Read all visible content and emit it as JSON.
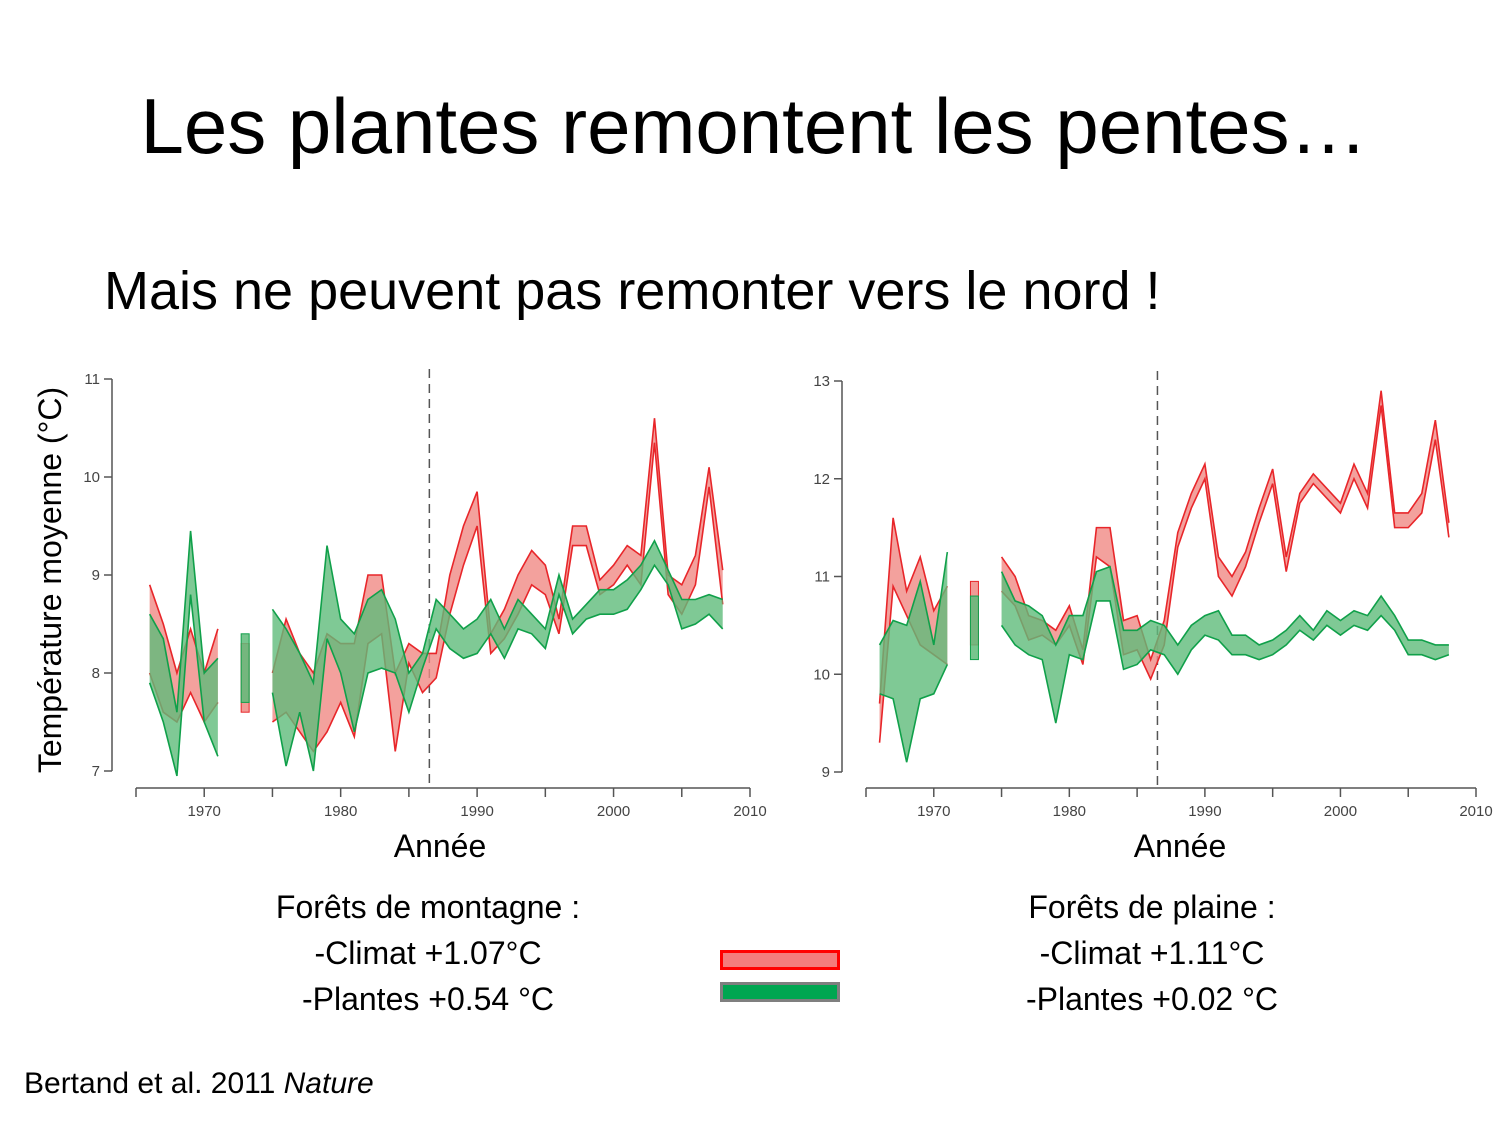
{
  "slide": {
    "title": "Les plantes remontent les pentes…",
    "subtitle": "Mais ne peuvent pas remonter vers le nord !",
    "citation_text": "Bertand et al. 2011 ",
    "citation_journal": "Nature"
  },
  "colors": {
    "climate_fill": "#f08a84",
    "climate_stroke": "#e8262a",
    "plants_fill": "#5fbb7a",
    "plants_stroke": "#10a04a",
    "legend_climate_fill": "#f47c7c",
    "legend_climate_border": "#ff0000",
    "legend_plants_fill": "#00a651",
    "legend_plants_border": "#7f7f7f"
  },
  "ylabel": "Température moyenne (°C)",
  "panels": [
    {
      "xlabel": "Année",
      "summary": [
        "Forêts de montagne :",
        "-Climat +1.07°C",
        "-Plantes +0.54 °C"
      ]
    },
    {
      "xlabel": "Année",
      "summary": [
        "Forêts de plaine :",
        "-Climat +1.11°C",
        "-Plantes +0.02 °C"
      ]
    }
  ],
  "chart_data": [
    {
      "type": "area",
      "xlabel": "Année",
      "ylabel": "Température moyenne (°C)",
      "xlim": [
        1965,
        2010
      ],
      "ylim": [
        7,
        11
      ],
      "xticks": [
        1970,
        1980,
        1990,
        2000,
        2010
      ],
      "yticks": [
        7,
        8,
        9,
        10,
        11
      ],
      "vline": 1986.5,
      "series": [
        {
          "role": "climate",
          "segments": [
            {
              "x": [
                1966,
                1967,
                1968,
                1969,
                1970,
                1971
              ],
              "lower": [
                8.0,
                7.6,
                7.5,
                7.8,
                7.5,
                7.7
              ],
              "upper": [
                8.9,
                8.5,
                8.0,
                8.45,
                8.0,
                8.45
              ]
            },
            {
              "x": [
                1973
              ],
              "lower": [
                7.6
              ],
              "upper": [
                8.3
              ]
            },
            {
              "x": [
                1975,
                1976,
                1977,
                1978,
                1979,
                1980,
                1981,
                1982,
                1983,
                1984,
                1985,
                1986,
                1987,
                1988,
                1989,
                1990,
                1991,
                1992,
                1993,
                1994,
                1995,
                1996,
                1997,
                1998,
                1999,
                2000,
                2001,
                2002,
                2003,
                2004,
                2005,
                2006,
                2007,
                2008
              ],
              "lower": [
                7.5,
                7.6,
                7.4,
                7.2,
                7.4,
                7.7,
                7.35,
                8.3,
                8.4,
                7.2,
                8.1,
                7.8,
                7.95,
                8.6,
                9.1,
                9.5,
                8.2,
                8.35,
                8.6,
                8.9,
                8.8,
                8.4,
                9.3,
                9.3,
                8.8,
                8.9,
                9.1,
                8.9,
                10.35,
                8.8,
                8.6,
                8.9,
                9.9,
                8.7
              ],
              "upper": [
                8.0,
                8.55,
                8.2,
                8.0,
                8.4,
                8.3,
                8.3,
                9.0,
                9.0,
                8.0,
                8.3,
                8.2,
                8.2,
                9.0,
                9.5,
                9.85,
                8.4,
                8.65,
                9.0,
                9.25,
                9.1,
                8.55,
                9.5,
                9.5,
                8.95,
                9.1,
                9.3,
                9.2,
                10.6,
                9.0,
                8.9,
                9.2,
                10.1,
                9.05
              ]
            }
          ]
        },
        {
          "role": "plants",
          "segments": [
            {
              "x": [
                1966,
                1967,
                1968,
                1969,
                1970,
                1971
              ],
              "lower": [
                7.9,
                7.5,
                6.95,
                8.8,
                7.5,
                7.15
              ],
              "upper": [
                8.6,
                8.35,
                7.6,
                9.45,
                8.0,
                8.15
              ]
            },
            {
              "x": [
                1973
              ],
              "lower": [
                7.7
              ],
              "upper": [
                8.4
              ]
            },
            {
              "x": [
                1975,
                1976,
                1977,
                1978,
                1979,
                1980,
                1981,
                1982,
                1983,
                1984,
                1985,
                1986,
                1987,
                1988,
                1989,
                1990,
                1991,
                1992,
                1993,
                1994,
                1995,
                1996,
                1997,
                1998,
                1999,
                2000,
                2001,
                2002,
                2003,
                2004,
                2005,
                2006,
                2007,
                2008
              ],
              "lower": [
                7.8,
                7.05,
                7.6,
                7.0,
                8.35,
                8.0,
                7.4,
                8.0,
                8.05,
                8.0,
                7.6,
                8.05,
                8.45,
                8.25,
                8.15,
                8.2,
                8.4,
                8.15,
                8.45,
                8.4,
                8.25,
                8.8,
                8.4,
                8.55,
                8.6,
                8.6,
                8.65,
                8.85,
                9.1,
                8.9,
                8.45,
                8.5,
                8.6,
                8.45
              ],
              "upper": [
                8.65,
                8.45,
                8.2,
                7.9,
                9.3,
                8.55,
                8.4,
                8.75,
                8.85,
                8.55,
                8.0,
                8.2,
                8.75,
                8.6,
                8.45,
                8.55,
                8.75,
                8.45,
                8.75,
                8.6,
                8.45,
                9.0,
                8.55,
                8.7,
                8.85,
                8.85,
                8.95,
                9.1,
                9.35,
                9.05,
                8.75,
                8.75,
                8.8,
                8.75
              ]
            }
          ]
        }
      ]
    },
    {
      "type": "area",
      "xlabel": "Année",
      "ylabel": "",
      "xlim": [
        1965,
        2010
      ],
      "ylim": [
        9,
        13
      ],
      "xticks": [
        1970,
        1980,
        1990,
        2000,
        2010
      ],
      "yticks": [
        9,
        10,
        11,
        12,
        13
      ],
      "vline": 1986.5,
      "series": [
        {
          "role": "climate",
          "segments": [
            {
              "x": [
                1966,
                1967,
                1968,
                1969,
                1970,
                1971
              ],
              "lower": [
                9.3,
                10.9,
                10.6,
                10.3,
                10.2,
                10.1
              ],
              "upper": [
                9.7,
                11.6,
                10.85,
                11.2,
                10.65,
                10.9
              ]
            },
            {
              "x": [
                1973
              ],
              "lower": [
                10.3
              ],
              "upper": [
                10.95
              ]
            },
            {
              "x": [
                1975,
                1976,
                1977,
                1978,
                1979,
                1980,
                1981,
                1982,
                1983,
                1984,
                1985,
                1986,
                1987,
                1988,
                1989,
                1990,
                1991,
                1992,
                1993,
                1994,
                1995,
                1996,
                1997,
                1998,
                1999,
                2000,
                2001,
                2002,
                2003,
                2004,
                2005,
                2006,
                2007,
                2008
              ],
              "lower": [
                10.85,
                10.7,
                10.35,
                10.4,
                10.3,
                10.5,
                10.1,
                11.2,
                11.1,
                10.2,
                10.25,
                9.95,
                10.3,
                11.3,
                11.7,
                12.0,
                11.0,
                10.8,
                11.1,
                11.55,
                11.95,
                11.05,
                11.75,
                11.95,
                11.8,
                11.65,
                12.0,
                11.7,
                12.75,
                11.5,
                11.5,
                11.65,
                12.4,
                11.4
              ],
              "upper": [
                11.2,
                11.0,
                10.6,
                10.55,
                10.45,
                10.7,
                10.25,
                11.5,
                11.5,
                10.55,
                10.6,
                10.15,
                10.55,
                11.45,
                11.85,
                12.15,
                11.2,
                11.0,
                11.25,
                11.7,
                12.1,
                11.2,
                11.85,
                12.05,
                11.9,
                11.75,
                12.15,
                11.85,
                12.9,
                11.65,
                11.65,
                11.85,
                12.6,
                11.55
              ]
            }
          ]
        },
        {
          "role": "plants",
          "segments": [
            {
              "x": [
                1966,
                1967,
                1968,
                1969,
                1970,
                1971
              ],
              "lower": [
                9.8,
                9.75,
                9.1,
                9.75,
                9.8,
                10.1
              ],
              "upper": [
                10.3,
                10.55,
                10.5,
                10.95,
                10.3,
                11.25
              ]
            },
            {
              "x": [
                1973
              ],
              "lower": [
                10.15
              ],
              "upper": [
                10.8
              ]
            },
            {
              "x": [
                1975,
                1976,
                1977,
                1978,
                1979,
                1980,
                1981,
                1982,
                1983,
                1984,
                1985,
                1986,
                1987,
                1988,
                1989,
                1990,
                1991,
                1992,
                1993,
                1994,
                1995,
                1996,
                1997,
                1998,
                1999,
                2000,
                2001,
                2002,
                2003,
                2004,
                2005,
                2006,
                2007,
                2008
              ],
              "lower": [
                10.5,
                10.3,
                10.2,
                10.15,
                9.5,
                10.2,
                10.15,
                10.75,
                10.75,
                10.05,
                10.1,
                10.25,
                10.2,
                10.0,
                10.25,
                10.4,
                10.35,
                10.2,
                10.2,
                10.15,
                10.2,
                10.3,
                10.45,
                10.35,
                10.5,
                10.4,
                10.5,
                10.45,
                10.6,
                10.45,
                10.2,
                10.2,
                10.15,
                10.2
              ],
              "upper": [
                11.05,
                10.75,
                10.7,
                10.6,
                10.3,
                10.6,
                10.6,
                11.05,
                11.1,
                10.45,
                10.45,
                10.55,
                10.5,
                10.3,
                10.5,
                10.6,
                10.65,
                10.4,
                10.4,
                10.3,
                10.35,
                10.45,
                10.6,
                10.45,
                10.65,
                10.55,
                10.65,
                10.6,
                10.8,
                10.6,
                10.35,
                10.35,
                10.3,
                10.3
              ]
            }
          ]
        }
      ]
    }
  ]
}
